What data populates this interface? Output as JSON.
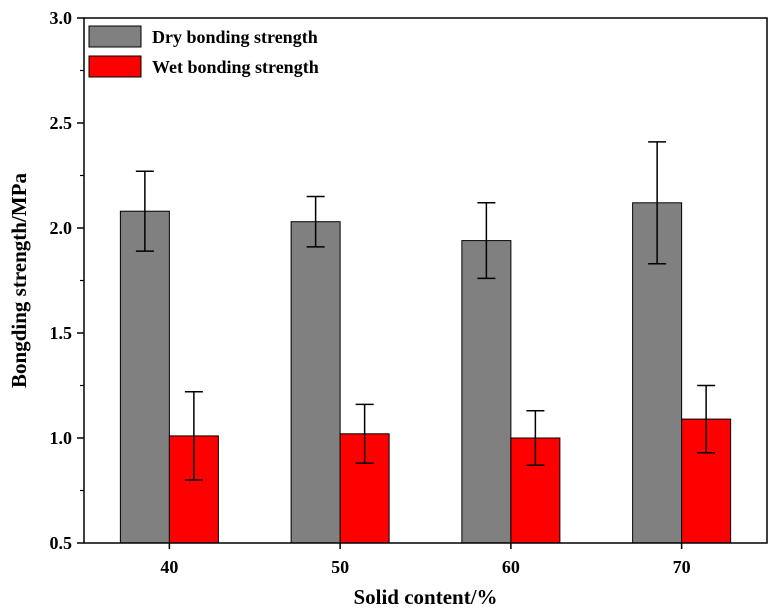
{
  "chart_data": {
    "type": "bar",
    "categories": [
      "40",
      "50",
      "60",
      "70"
    ],
    "series": [
      {
        "name": "Dry bonding strength",
        "color": "#808080",
        "values": [
          2.08,
          2.03,
          1.94,
          2.12
        ],
        "errors": [
          0.19,
          0.12,
          0.18,
          0.29
        ]
      },
      {
        "name": "Wet bonding strength",
        "color": "#ff0000",
        "values": [
          1.01,
          1.02,
          1.0,
          1.09
        ],
        "errors": [
          0.21,
          0.14,
          0.13,
          0.16
        ]
      }
    ],
    "xlabel": "Solid content/%",
    "ylabel": "Bongding strength/MPa",
    "ylim": [
      0.5,
      3.0
    ],
    "yticks": [
      "0.5",
      "1.0",
      "1.5",
      "2.0",
      "2.5",
      "3.0"
    ],
    "grid": false,
    "legend": "top-left"
  }
}
